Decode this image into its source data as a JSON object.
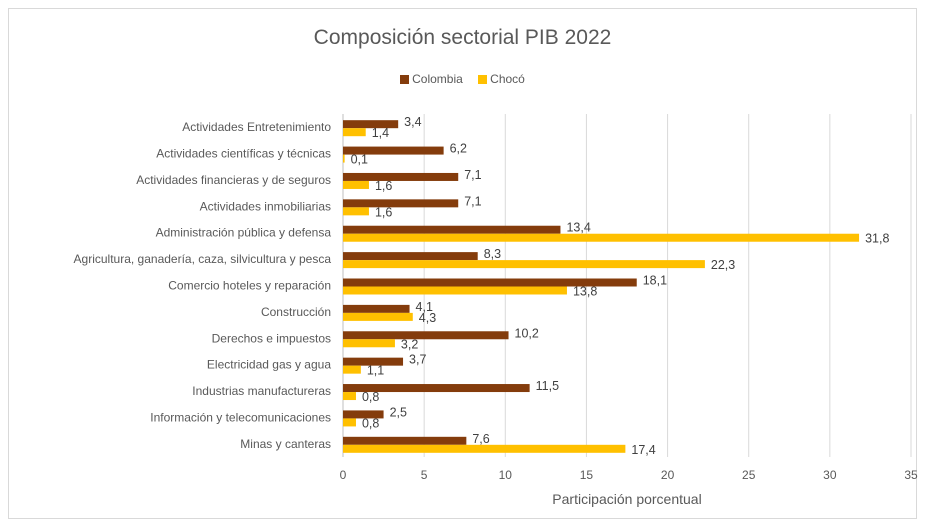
{
  "chart_data": {
    "type": "bar",
    "orientation": "horizontal",
    "title": "Composición sectorial PIB 2022",
    "xlabel": "Participación porcentual",
    "ylabel": "",
    "xlim": [
      0,
      35
    ],
    "x_ticks": [
      "0",
      "5",
      "10",
      "15",
      "20",
      "25",
      "30",
      "35"
    ],
    "grid": "vertical",
    "legend_position": "top",
    "categories": [
      "Actividades Entretenimiento",
      "Actividades científicas y técnicas",
      "Actividades financieras y de seguros",
      "Actividades inmobiliarias",
      "Administración pública y defensa",
      "Agricultura, ganadería, caza, silvicultura y pesca",
      "Comercio hoteles y reparación",
      "Construcción",
      "Derechos e impuestos",
      "Electricidad gas y agua",
      "Industrias manufactureras",
      "Información y telecomunicaciones",
      "Minas y canteras"
    ],
    "series": [
      {
        "name": "Colombia",
        "color": "#843c0c",
        "values": [
          3.4,
          6.2,
          7.1,
          7.1,
          13.4,
          8.3,
          18.1,
          4.1,
          10.2,
          3.7,
          11.5,
          2.5,
          7.6
        ],
        "labels": [
          "3,4",
          "6,2",
          "7,1",
          "7,1",
          "13,4",
          "8,3",
          "18,1",
          "4,1",
          "10,2",
          "3,7",
          "11,5",
          "2,5",
          "7,6"
        ]
      },
      {
        "name": "Chocó",
        "color": "#ffc000",
        "values": [
          1.4,
          0.1,
          1.6,
          1.6,
          31.8,
          22.3,
          13.8,
          4.3,
          3.2,
          1.1,
          0.8,
          0.8,
          17.4
        ],
        "labels": [
          "1,4",
          "0,1",
          "1,6",
          "1,6",
          "31,8",
          "22,3",
          "13,8",
          "4,3",
          "3,2",
          "1,1",
          "0,8",
          "0,8",
          "17,4"
        ]
      }
    ]
  }
}
